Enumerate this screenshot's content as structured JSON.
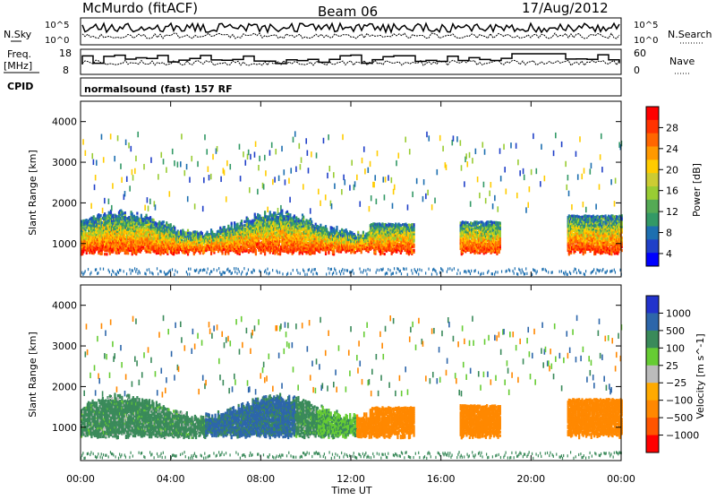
{
  "header": {
    "station": "McMurdo (fitACF)",
    "beam": "Beam 06",
    "date": "17/Aug/2012"
  },
  "top_panels": {
    "nsky_label": "N.Sky",
    "nsearch_label": "N.Search",
    "freq_label_1": "Freq.",
    "freq_label_2": "[MHz]",
    "nave_label": "Nave",
    "cpid_label": "CPID",
    "cpid_value": "normalsound (fast) 157 RF",
    "noise_left_ticks": [
      "10^5",
      "10^0"
    ],
    "noise_right_ticks": [
      "10^5",
      "10^0"
    ],
    "freq_ticks": [
      "18",
      "8"
    ],
    "nave_ticks": [
      "60",
      "0"
    ]
  },
  "chart_data": [
    {
      "type": "heatmap",
      "name": "power",
      "xlabel": "Time UT",
      "ylabel": "Slant Range [km]",
      "xlim": [
        0,
        24
      ],
      "ylim": [
        180,
        4500
      ],
      "x_ticks": [
        "00:00",
        "04:00",
        "08:00",
        "12:00",
        "16:00",
        "20:00",
        "00:00"
      ],
      "y_ticks": [
        1000,
        2000,
        3000,
        4000
      ],
      "colorbar_label": "Power [dB]",
      "colorbar_ticks": [
        "28",
        "24",
        "20",
        "16",
        "12",
        "8",
        "4"
      ],
      "colorbar_colors": [
        "#ff0000",
        "#ff3300",
        "#ff6600",
        "#ff9900",
        "#ffcc00",
        "#cccc33",
        "#99cc33",
        "#55aa55",
        "#339966",
        "#1d6fb0",
        "#2040c8",
        "#0000ff"
      ]
    },
    {
      "type": "heatmap",
      "name": "velocity",
      "xlabel": "Time UT",
      "ylabel": "Slant Range [km]",
      "xlim": [
        0,
        24
      ],
      "ylim": [
        180,
        4500
      ],
      "x_ticks": [
        "00:00",
        "04:00",
        "08:00",
        "12:00",
        "16:00",
        "20:00",
        "00:00"
      ],
      "y_ticks": [
        1000,
        2000,
        3000,
        4000
      ],
      "colorbar_label": "Velocity [m s^-1]",
      "colorbar_ticks": [
        "1000",
        "500",
        "100",
        "25",
        "−25",
        "−100",
        "−500",
        "−1000"
      ],
      "colorbar_colors": [
        "#2233cc",
        "#2d66aa",
        "#3a8a5a",
        "#66cc33",
        "#bbbbbb",
        "#ffaa00",
        "#ff8800",
        "#ff5500",
        "#ff0000"
      ]
    }
  ]
}
